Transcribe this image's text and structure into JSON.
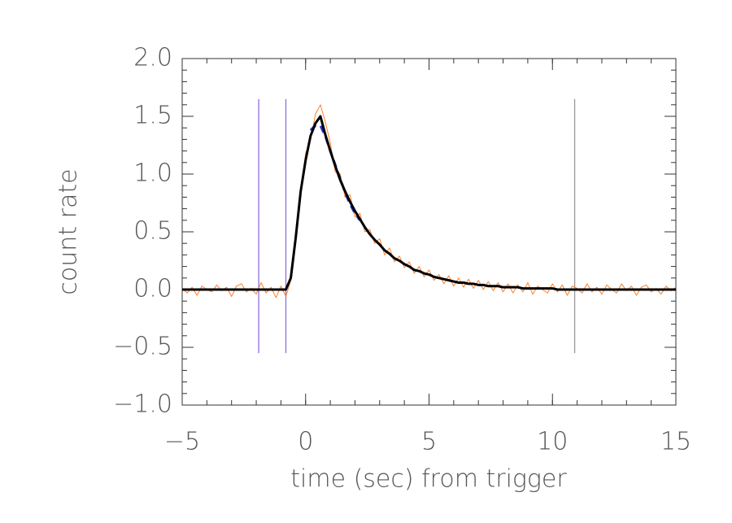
{
  "chart_data": {
    "type": "line",
    "xlabel": "time (sec) from trigger",
    "ylabel": "count rate",
    "xlim": [
      -5,
      15
    ],
    "ylim": [
      -1.0,
      2.0
    ],
    "xticks": [
      {
        "value": -5,
        "label": "−5"
      },
      0,
      5,
      10,
      15
    ],
    "yticks": [
      {
        "value": -1.0,
        "label": "−1.0"
      },
      {
        "value": -0.5,
        "label": "−0.5"
      },
      {
        "value": 0,
        "label": "0.0"
      },
      {
        "value": 0.5,
        "label": "0.5"
      },
      {
        "value": 1.0,
        "label": "1.0"
      },
      {
        "value": 1.5,
        "label": "1.5"
      },
      {
        "value": 2.0,
        "label": "2.0"
      }
    ],
    "minor_tick_step": {
      "x": 1,
      "y": 0.1
    },
    "x": [
      -5,
      -4.8,
      -4.6,
      -4.4,
      -4.2,
      -4,
      -3.8,
      -3.6,
      -3.4,
      -3.2,
      -3,
      -2.8,
      -2.6,
      -2.4,
      -2.2,
      -2,
      -1.8,
      -1.6,
      -1.4,
      -1.2,
      -1,
      -0.8,
      -0.6,
      -0.4,
      -0.2,
      0,
      0.2,
      0.4,
      0.6,
      0.8,
      1,
      1.2,
      1.4,
      1.6,
      1.8,
      2,
      2.2,
      2.4,
      2.6,
      2.8,
      3,
      3.2,
      3.4,
      3.6,
      3.8,
      4,
      4.2,
      4.4,
      4.6,
      4.8,
      5,
      5.2,
      5.4,
      5.6,
      5.8,
      6,
      6.2,
      6.4,
      6.6,
      6.8,
      7,
      7.2,
      7.4,
      7.6,
      7.8,
      8,
      8.2,
      8.4,
      8.6,
      8.8,
      9,
      9.2,
      9.4,
      9.6,
      9.8,
      10,
      10.2,
      10.4,
      10.6,
      10.8,
      11,
      11.2,
      11.4,
      11.6,
      11.8,
      12,
      12.2,
      12.4,
      12.6,
      12.8,
      13,
      13.2,
      13.4,
      13.6,
      13.8,
      14,
      14.2,
      14.4,
      14.6,
      14.8,
      15
    ],
    "series": [
      {
        "color": "#ff7f2a",
        "width": 1,
        "dash": false,
        "values": [
          0.01,
          -0.03,
          0.02,
          -0.05,
          0.03,
          0.0,
          -0.02,
          0.04,
          -0.01,
          0.02,
          -0.06,
          0.03,
          0.05,
          -0.02,
          0.01,
          -0.04,
          0.06,
          -0.03,
          0.02,
          -0.07,
          0.03,
          -0.06,
          0.08,
          0.5,
          0.82,
          1.18,
          1.3,
          1.52,
          1.6,
          1.45,
          1.27,
          1.02,
          1.0,
          0.8,
          0.82,
          0.63,
          0.66,
          0.5,
          0.52,
          0.4,
          0.44,
          0.3,
          0.36,
          0.24,
          0.29,
          0.19,
          0.24,
          0.14,
          0.2,
          0.11,
          0.17,
          0.08,
          0.13,
          0.05,
          0.12,
          0.03,
          0.1,
          0.02,
          0.09,
          0.01,
          0.08,
          0.0,
          0.07,
          -0.01,
          0.06,
          -0.02,
          0.05,
          -0.03,
          0.04,
          -0.02,
          0.06,
          -0.04,
          0.03,
          0.0,
          -0.03,
          0.05,
          -0.02,
          0.04,
          -0.05,
          0.03,
          0.01,
          -0.03,
          0.05,
          -0.02,
          0.02,
          -0.04,
          0.04,
          0.0,
          -0.03,
          0.05,
          -0.01,
          0.03,
          -0.05,
          0.02,
          0.04,
          -0.02,
          0.01,
          -0.04,
          0.03,
          -0.01,
          0.02
        ]
      },
      {
        "color": "#1a2fd6",
        "width": 3,
        "dash": true,
        "values": [
          null,
          null,
          null,
          null,
          null,
          null,
          null,
          null,
          null,
          null,
          null,
          null,
          null,
          null,
          null,
          null,
          null,
          null,
          null,
          null,
          null,
          null,
          null,
          null,
          null,
          null,
          1.38,
          1.42,
          1.42,
          1.33,
          1.2,
          1.08,
          0.96,
          0.84,
          0.74,
          0.66,
          0.6,
          null,
          null,
          null,
          null,
          null,
          null,
          null,
          null,
          null,
          null,
          null,
          null,
          null,
          null,
          null,
          null,
          null,
          null,
          null,
          null,
          null,
          null,
          null,
          null,
          null,
          null,
          null,
          null,
          null,
          null,
          null,
          null,
          null,
          null,
          null,
          null,
          null,
          null,
          null,
          null,
          null,
          null,
          null,
          null,
          null,
          null,
          null,
          null,
          null,
          null,
          null,
          null,
          null,
          null,
          null,
          null,
          null,
          null,
          null,
          null,
          null,
          null,
          null,
          null
        ]
      },
      {
        "color": "#000000",
        "width": 3,
        "dash": false,
        "values": [
          0,
          0,
          0,
          0,
          0,
          0,
          0,
          0,
          0,
          0,
          0,
          0,
          0,
          0,
          0,
          0,
          0,
          0,
          0,
          0,
          0,
          0,
          0.1,
          0.45,
          0.85,
          1.12,
          1.33,
          1.44,
          1.5,
          1.34,
          1.2,
          1.07,
          0.95,
          0.85,
          0.76,
          0.68,
          0.61,
          0.54,
          0.48,
          0.43,
          0.39,
          0.34,
          0.31,
          0.27,
          0.25,
          0.22,
          0.2,
          0.17,
          0.16,
          0.14,
          0.13,
          0.11,
          0.1,
          0.09,
          0.08,
          0.07,
          0.06,
          0.06,
          0.05,
          0.05,
          0.04,
          0.04,
          0.03,
          0.03,
          0.03,
          0.02,
          0.02,
          0.02,
          0.02,
          0.01,
          0.01,
          0.01,
          0.01,
          0.01,
          0.01,
          0.01,
          0,
          0,
          0,
          0,
          0,
          0,
          0,
          0,
          0,
          0,
          0,
          0,
          0,
          0,
          0,
          0,
          0,
          0,
          0,
          0,
          0,
          0,
          0,
          0,
          0
        ]
      }
    ],
    "vlines": [
      {
        "x": -1.9,
        "color": "#8e6fd8"
      },
      {
        "x": -0.8,
        "color": "#8e6fd8"
      },
      {
        "x": 10.9,
        "color": "#9a9a9a"
      }
    ],
    "vline_ylim": [
      -0.55,
      1.65
    ]
  }
}
